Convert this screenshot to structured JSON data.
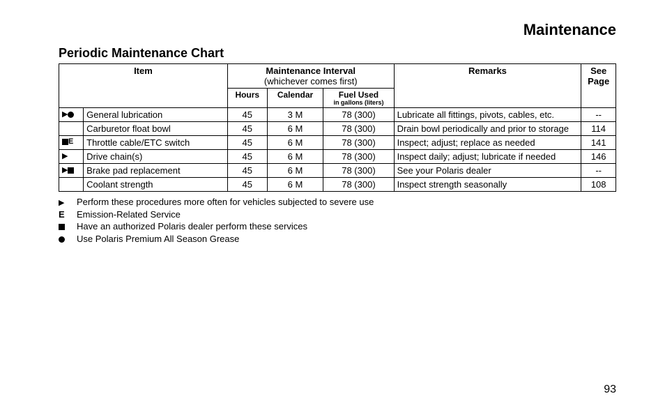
{
  "section_title": "Maintenance",
  "chart_title": "Periodic Maintenance Chart",
  "headers": {
    "item": "Item",
    "interval": "Maintenance Interval",
    "interval_note": "(whichever comes first)",
    "hours": "Hours",
    "calendar": "Calendar",
    "fuel": "Fuel Used",
    "fuel_sub": "in gallons (liters)",
    "remarks": "Remarks",
    "see_page": "See Page"
  },
  "rows": [
    {
      "sym_tri": true,
      "sym_e": false,
      "sym_sq": false,
      "sym_dot": true,
      "item": "General lubrication",
      "hours": "45",
      "calendar": "3 M",
      "fuel": "78 (300)",
      "remarks": "Lubricate all fittings, pivots, cables, etc.",
      "page": "--"
    },
    {
      "sym_tri": false,
      "sym_e": false,
      "sym_sq": false,
      "sym_dot": false,
      "item": "Carburetor float bowl",
      "hours": "45",
      "calendar": "6 M",
      "fuel": "78 (300)",
      "remarks": "Drain bowl periodically and prior to storage",
      "page": "114"
    },
    {
      "sym_tri": false,
      "sym_e": true,
      "sym_sq": true,
      "sym_dot": false,
      "item": "Throttle cable/ETC switch",
      "hours": "45",
      "calendar": "6 M",
      "fuel": "78 (300)",
      "remarks": "Inspect; adjust; replace as needed",
      "page": "141"
    },
    {
      "sym_tri": true,
      "sym_e": false,
      "sym_sq": false,
      "sym_dot": false,
      "item": "Drive chain(s)",
      "hours": "45",
      "calendar": "6 M",
      "fuel": "78 (300)",
      "remarks": "Inspect daily; adjust; lubricate if needed",
      "page": "146"
    },
    {
      "sym_tri": true,
      "sym_e": false,
      "sym_sq": true,
      "sym_dot": false,
      "item": "Brake pad replacement",
      "hours": "45",
      "calendar": "6 M",
      "fuel": "78 (300)",
      "remarks": "See your Polaris dealer",
      "page": "--"
    },
    {
      "sym_tri": false,
      "sym_e": false,
      "sym_sq": false,
      "sym_dot": false,
      "item": "Coolant strength",
      "hours": "45",
      "calendar": "6 M",
      "fuel": "78 (300)",
      "remarks": "Inspect strength seasonally",
      "page": "108"
    }
  ],
  "legend": [
    {
      "tri": true,
      "e": false,
      "sq": false,
      "dot": false,
      "text": "Perform these procedures more often for vehicles subjected to severe use"
    },
    {
      "tri": false,
      "e": true,
      "sq": false,
      "dot": false,
      "text": "Emission-Related Service"
    },
    {
      "tri": false,
      "e": false,
      "sq": true,
      "dot": false,
      "text": "Have an authorized Polaris dealer perform these services"
    },
    {
      "tri": false,
      "e": false,
      "sq": false,
      "dot": true,
      "text": "Use Polaris Premium All Season Grease"
    }
  ],
  "page_number": "93",
  "colors": {
    "text": "#000000",
    "background": "#ffffff",
    "border": "#000000"
  },
  "typography": {
    "body_font": "Arial",
    "section_title_pt": 22,
    "chart_title_pt": 18,
    "table_pt": 13,
    "legend_pt": 13
  }
}
